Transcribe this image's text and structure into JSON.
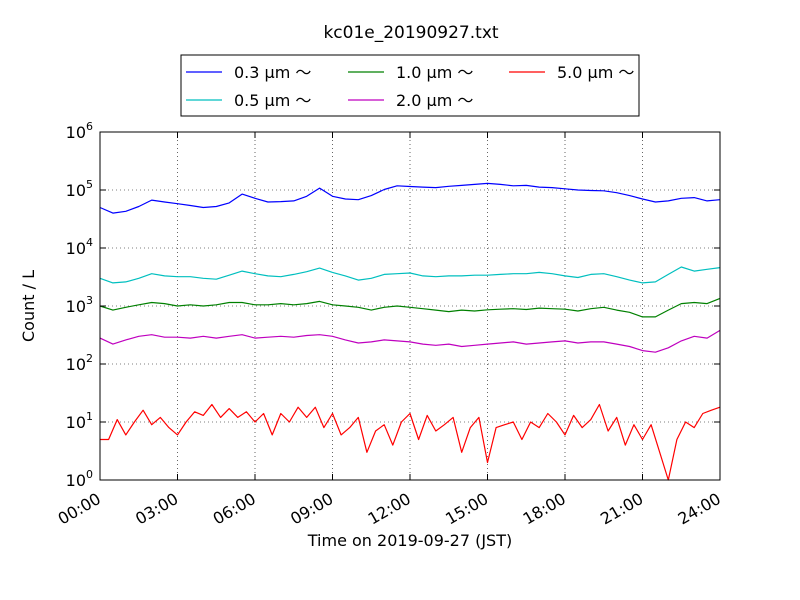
{
  "chart_data": {
    "type": "line",
    "title": "kc01e_20190927.txt",
    "xlabel": "Time on 2019-09-27 (JST)",
    "ylabel": "Count / L",
    "yscale": "log",
    "ylim": [
      1,
      1000000
    ],
    "xlim": [
      "00:00",
      "24:00"
    ],
    "grid": true,
    "legend_position": "top-center",
    "x_ticks": [
      "00:00",
      "03:00",
      "06:00",
      "09:00",
      "12:00",
      "15:00",
      "18:00",
      "21:00",
      "24:00"
    ],
    "y_ticks": [
      {
        "value": 1,
        "base": "10",
        "exp": "0"
      },
      {
        "value": 10,
        "base": "10",
        "exp": "1"
      },
      {
        "value": 100,
        "base": "10",
        "exp": "2"
      },
      {
        "value": 1000,
        "base": "10",
        "exp": "3"
      },
      {
        "value": 10000,
        "base": "10",
        "exp": "4"
      },
      {
        "value": 100000,
        "base": "10",
        "exp": "5"
      },
      {
        "value": 1000000,
        "base": "10",
        "exp": "6"
      }
    ],
    "series": [
      {
        "name": "0.3 μm ～",
        "color": "#0000ff",
        "x": [
          "00:00",
          "00:30",
          "01:00",
          "01:30",
          "02:00",
          "02:30",
          "03:00",
          "03:30",
          "04:00",
          "04:30",
          "05:00",
          "05:30",
          "06:00",
          "06:30",
          "07:00",
          "07:30",
          "08:00",
          "08:30",
          "09:00",
          "09:30",
          "10:00",
          "10:30",
          "11:00",
          "11:30",
          "12:00",
          "12:30",
          "13:00",
          "13:30",
          "14:00",
          "14:30",
          "15:00",
          "15:30",
          "16:00",
          "16:30",
          "17:00",
          "17:30",
          "18:00",
          "18:30",
          "19:00",
          "19:30",
          "20:00",
          "20:30",
          "21:00",
          "21:30",
          "22:00",
          "22:30",
          "23:00",
          "23:30",
          "24:00"
        ],
        "values": [
          50000,
          40000,
          43000,
          52000,
          67000,
          62000,
          58000,
          54000,
          50000,
          52000,
          60000,
          85000,
          72000,
          62000,
          63000,
          65000,
          78000,
          108000,
          78000,
          70000,
          68000,
          80000,
          102000,
          118000,
          115000,
          112000,
          110000,
          116000,
          120000,
          125000,
          130000,
          125000,
          118000,
          120000,
          112000,
          110000,
          105000,
          100000,
          98000,
          97000,
          90000,
          80000,
          70000,
          62000,
          65000,
          72000,
          74000,
          65000,
          68000
        ]
      },
      {
        "name": "0.5 μm ～",
        "color": "#00bfbf",
        "x": [
          "00:00",
          "00:30",
          "01:00",
          "01:30",
          "02:00",
          "02:30",
          "03:00",
          "03:30",
          "04:00",
          "04:30",
          "05:00",
          "05:30",
          "06:00",
          "06:30",
          "07:00",
          "07:30",
          "08:00",
          "08:30",
          "09:00",
          "09:30",
          "10:00",
          "10:30",
          "11:00",
          "11:30",
          "12:00",
          "12:30",
          "13:00",
          "13:30",
          "14:00",
          "14:30",
          "15:00",
          "15:30",
          "16:00",
          "16:30",
          "17:00",
          "17:30",
          "18:00",
          "18:30",
          "19:00",
          "19:30",
          "20:00",
          "20:30",
          "21:00",
          "21:30",
          "22:00",
          "22:30",
          "23:00",
          "23:30",
          "24:00"
        ],
        "values": [
          3000,
          2500,
          2600,
          3000,
          3600,
          3300,
          3200,
          3200,
          3000,
          2900,
          3400,
          4000,
          3600,
          3300,
          3200,
          3500,
          3900,
          4500,
          3800,
          3300,
          2800,
          3000,
          3500,
          3600,
          3700,
          3300,
          3200,
          3300,
          3300,
          3400,
          3400,
          3500,
          3600,
          3600,
          3800,
          3600,
          3300,
          3100,
          3500,
          3600,
          3200,
          2800,
          2500,
          2600,
          3500,
          4700,
          4000,
          4300,
          4600
        ]
      },
      {
        "name": "1.0 μm ～",
        "color": "#008000",
        "x": [
          "00:00",
          "00:30",
          "01:00",
          "01:30",
          "02:00",
          "02:30",
          "03:00",
          "03:30",
          "04:00",
          "04:30",
          "05:00",
          "05:30",
          "06:00",
          "06:30",
          "07:00",
          "07:30",
          "08:00",
          "08:30",
          "09:00",
          "09:30",
          "10:00",
          "10:30",
          "11:00",
          "11:30",
          "12:00",
          "12:30",
          "13:00",
          "13:30",
          "14:00",
          "14:30",
          "15:00",
          "15:30",
          "16:00",
          "16:30",
          "17:00",
          "17:30",
          "18:00",
          "18:30",
          "19:00",
          "19:30",
          "20:00",
          "20:30",
          "21:00",
          "21:30",
          "22:00",
          "22:30",
          "23:00",
          "23:30",
          "24:00"
        ],
        "values": [
          1000,
          850,
          950,
          1050,
          1150,
          1100,
          1000,
          1050,
          1000,
          1050,
          1150,
          1150,
          1050,
          1050,
          1100,
          1050,
          1100,
          1200,
          1050,
          1000,
          950,
          850,
          950,
          1000,
          950,
          900,
          850,
          800,
          850,
          820,
          860,
          880,
          900,
          870,
          920,
          900,
          880,
          820,
          900,
          950,
          850,
          780,
          650,
          650,
          850,
          1100,
          1150,
          1100,
          1350
        ]
      },
      {
        "name": "2.0 μm ～",
        "color": "#bf00bf",
        "x": [
          "00:00",
          "00:30",
          "01:00",
          "01:30",
          "02:00",
          "02:30",
          "03:00",
          "03:30",
          "04:00",
          "04:30",
          "05:00",
          "05:30",
          "06:00",
          "06:30",
          "07:00",
          "07:30",
          "08:00",
          "08:30",
          "09:00",
          "09:30",
          "10:00",
          "10:30",
          "11:00",
          "11:30",
          "12:00",
          "12:30",
          "13:00",
          "13:30",
          "14:00",
          "14:30",
          "15:00",
          "15:30",
          "16:00",
          "16:30",
          "17:00",
          "17:30",
          "18:00",
          "18:30",
          "19:00",
          "19:30",
          "20:00",
          "20:30",
          "21:00",
          "21:30",
          "22:00",
          "22:30",
          "23:00",
          "23:30",
          "24:00"
        ],
        "values": [
          280,
          220,
          260,
          300,
          320,
          290,
          290,
          280,
          300,
          280,
          300,
          320,
          280,
          290,
          300,
          290,
          310,
          320,
          300,
          260,
          230,
          240,
          260,
          250,
          240,
          220,
          210,
          220,
          200,
          210,
          220,
          230,
          240,
          220,
          230,
          240,
          250,
          230,
          240,
          240,
          220,
          200,
          170,
          160,
          190,
          250,
          300,
          280,
          380
        ]
      },
      {
        "name": "5.0 μm ～",
        "color": "#ff0000",
        "x": [
          "00:00",
          "00:20",
          "00:40",
          "01:00",
          "01:20",
          "01:40",
          "02:00",
          "02:20",
          "02:40",
          "03:00",
          "03:20",
          "03:40",
          "04:00",
          "04:20",
          "04:40",
          "05:00",
          "05:20",
          "05:40",
          "06:00",
          "06:20",
          "06:40",
          "07:00",
          "07:20",
          "07:40",
          "08:00",
          "08:20",
          "08:40",
          "09:00",
          "09:20",
          "09:40",
          "10:00",
          "10:20",
          "10:40",
          "11:00",
          "11:20",
          "11:40",
          "12:00",
          "12:20",
          "12:40",
          "13:00",
          "13:20",
          "13:40",
          "14:00",
          "14:20",
          "14:40",
          "15:00",
          "15:20",
          "15:40",
          "16:00",
          "16:20",
          "16:40",
          "17:00",
          "17:20",
          "17:40",
          "18:00",
          "18:20",
          "18:40",
          "19:00",
          "19:20",
          "19:40",
          "20:00",
          "20:20",
          "20:40",
          "21:00",
          "21:20",
          "21:40",
          "22:00",
          "22:20",
          "22:40",
          "23:00",
          "23:20",
          "23:40",
          "24:00"
        ],
        "values": [
          5,
          5,
          11,
          6,
          10,
          16,
          9,
          12,
          8,
          6,
          10,
          15,
          13,
          20,
          12,
          17,
          12,
          15,
          10,
          14,
          6,
          14,
          10,
          18,
          12,
          18,
          8,
          14,
          6,
          8,
          12,
          3,
          7,
          9,
          4,
          10,
          14,
          5,
          13,
          7,
          9,
          12,
          3,
          8,
          12,
          2,
          8,
          9,
          10,
          5,
          10,
          8,
          14,
          10,
          6,
          13,
          8,
          11,
          20,
          7,
          12,
          4,
          9,
          5,
          9,
          3,
          1,
          5,
          10,
          8,
          14,
          16,
          18
        ]
      }
    ]
  }
}
